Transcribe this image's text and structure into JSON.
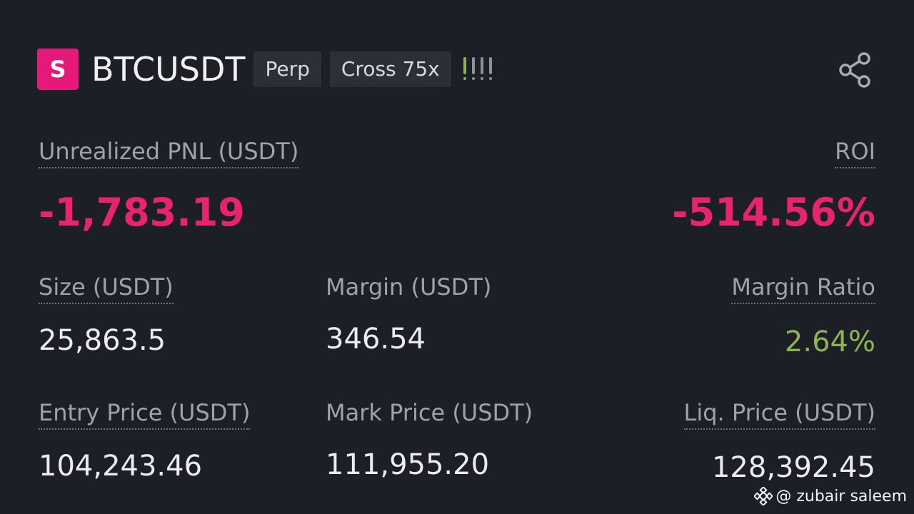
{
  "header": {
    "side_badge": "S",
    "symbol": "BTCUSDT",
    "tags": [
      "Perp",
      "Cross 75x"
    ],
    "risk_level_bars": 4,
    "share_icon": "share-icon"
  },
  "pnl": {
    "label": "Unrealized PNL (USDT)",
    "value": "-1,783.19"
  },
  "roi": {
    "label": "ROI",
    "value": "-514.56%"
  },
  "size": {
    "label": "Size (USDT)",
    "value": "25,863.5"
  },
  "margin": {
    "label": "Margin (USDT)",
    "value": "346.54"
  },
  "margin_ratio": {
    "label": "Margin Ratio",
    "value": "2.64%"
  },
  "entry_price": {
    "label": "Entry Price (USDT)",
    "value": "104,243.46"
  },
  "mark_price": {
    "label": "Mark Price (USDT)",
    "value": "111,955.20"
  },
  "liq_price": {
    "label": "Liq. Price (USDT)",
    "value": "128,392.45"
  },
  "watermark": {
    "text": "@ zubair saleem",
    "icon": "binance-logo-icon"
  },
  "colors": {
    "short_badge": "#e6197a",
    "negative": "#e8246f",
    "positive": "#8cb454",
    "background": "#1c1f26"
  }
}
